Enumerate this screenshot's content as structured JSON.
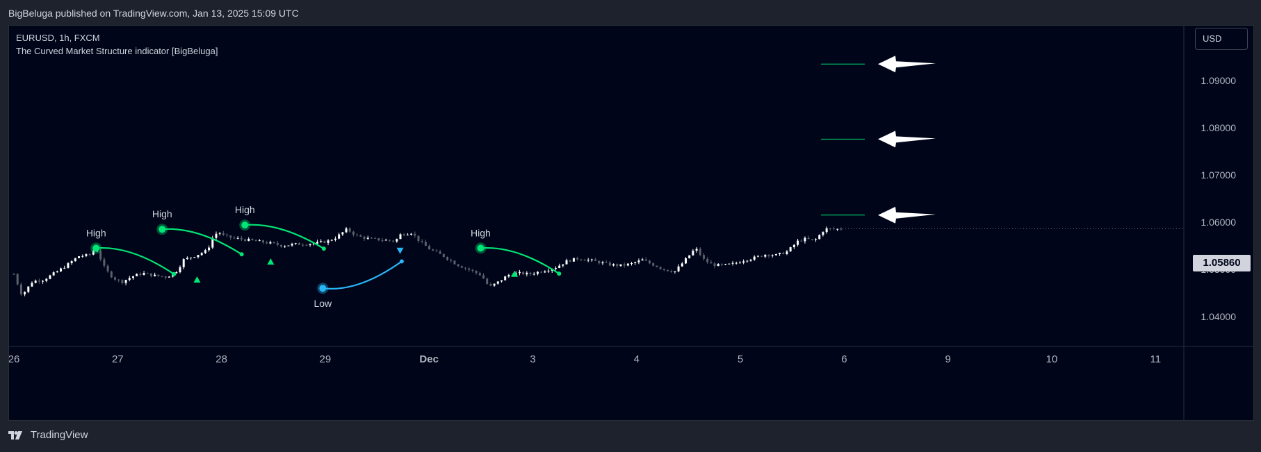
{
  "publisher_line": "BigBeluga published on TradingView.com, Jan 13, 2025 15:09 UTC",
  "legend": {
    "symbol": "EURUSD, 1h, FXCM",
    "indicator": "The Curved Market Structure indicator [BigBeluga]"
  },
  "currency_button": "USD",
  "current_price": "1.05860",
  "footer_brand": "TradingView",
  "colors": {
    "background": "#000519",
    "bullish": "#00e676",
    "bearish": "#29b6f6",
    "candle_up": "#ffffff",
    "candle_down": "#5d606b"
  },
  "chart_data": {
    "type": "candlestick",
    "symbol": "EURUSD",
    "interval": "1h",
    "y_axis": {
      "ticks": [
        "1.09000",
        "1.08000",
        "1.07000",
        "1.06000",
        "1.05000",
        "1.04000"
      ],
      "tick_values": [
        1.09,
        1.08,
        1.07,
        1.06,
        1.05,
        1.04
      ],
      "range": [
        1.0335,
        1.0985
      ]
    },
    "x_axis": {
      "ticks": [
        "26",
        "27",
        "28",
        "29",
        "Dec",
        "3",
        "4",
        "5",
        "6",
        "9",
        "10",
        "11"
      ]
    },
    "swing_labels": [
      {
        "text": "High",
        "kind": "high",
        "tick_index": 1.53,
        "price": 1.0545,
        "curve_end_tick": 2.98,
        "curve_end_price": 1.049
      },
      {
        "text": "High",
        "kind": "high",
        "tick_index": 2.76,
        "price": 1.0585,
        "curve_end_tick": 4.24,
        "curve_end_price": 1.0532
      },
      {
        "text": "High",
        "kind": "high",
        "tick_index": 4.3,
        "price": 1.0594,
        "curve_end_tick": 5.77,
        "curve_end_price": 1.0544
      },
      {
        "text": "Low",
        "kind": "low",
        "tick_index": 5.75,
        "price": 1.046,
        "curve_end_tick": 7.22,
        "curve_end_price": 1.0517
      },
      {
        "text": "High",
        "kind": "high",
        "tick_index": 8.69,
        "price": 1.0545,
        "curve_end_tick": 10.15,
        "curve_end_price": 1.0491
      }
    ],
    "signals": [
      {
        "dir": "up",
        "tick_index": 3.41,
        "price": 1.0478
      },
      {
        "dir": "up",
        "tick_index": 4.78,
        "price": 1.0516
      },
      {
        "dir": "down",
        "tick_index": 7.19,
        "price": 1.054
      },
      {
        "dir": "up",
        "tick_index": 9.32,
        "price": 1.049
      }
    ],
    "target_levels": [
      1.0935,
      1.0776,
      1.0615
    ]
  }
}
